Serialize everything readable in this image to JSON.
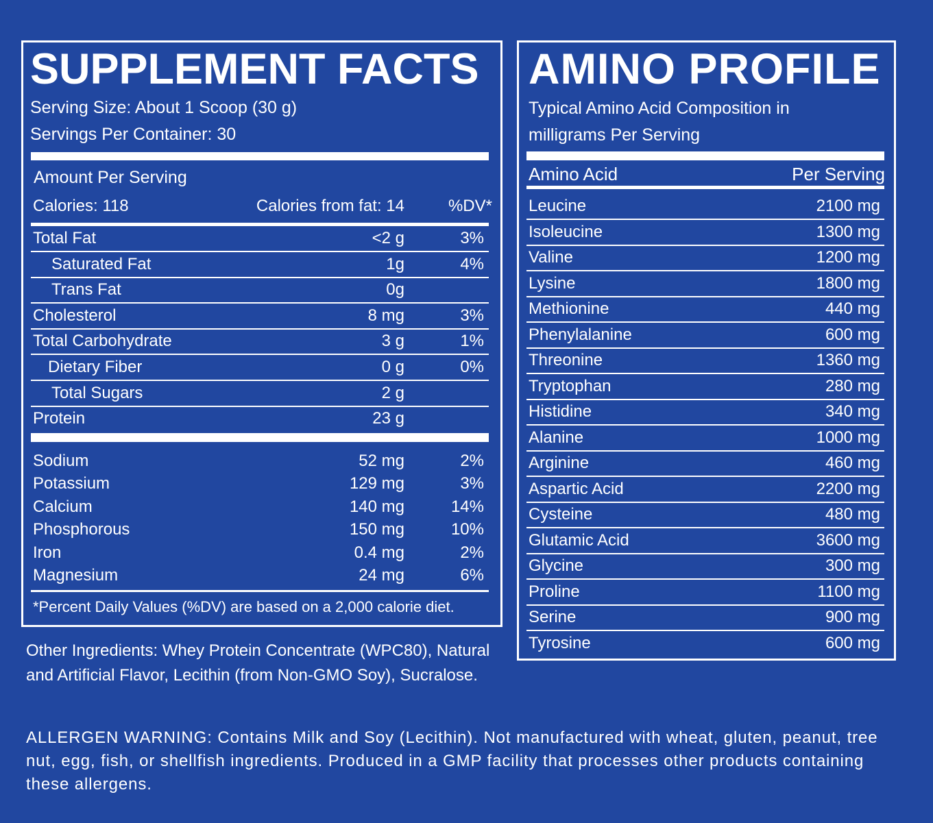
{
  "supplement_facts": {
    "title": "SUPPLEMENT FACTS",
    "serving_size": "Serving Size: About 1 Scoop (30 g)",
    "servings_per_container": "Servings Per Container: 30",
    "amount_per_serving": "Amount Per Serving",
    "calories": "Calories: 118",
    "calories_from_fat": "Calories from fat: 14",
    "dv_header": "%DV*",
    "nutrients": [
      {
        "name": "Total Fat",
        "amount": "<2 g",
        "dv": "3%"
      },
      {
        "name": "Saturated Fat",
        "amount": "1g",
        "dv": "4%"
      },
      {
        "name": "Trans Fat",
        "amount": "0g"
      },
      {
        "name": "Cholesterol",
        "amount": "8 mg",
        "dv": "3%"
      },
      {
        "name": "Total Carbohydrate",
        "amount": "3 g",
        "dv": "1%"
      },
      {
        "name": "Dietary Fiber",
        "amount": "0 g",
        "dv": "0%"
      },
      {
        "name": "Total Sugars",
        "amount": "2 g"
      },
      {
        "name": "Protein",
        "amount": "23 g"
      }
    ],
    "minerals": [
      {
        "name": "Sodium",
        "amount": "52 mg",
        "dv": "2%"
      },
      {
        "name": "Potassium",
        "amount": "129 mg",
        "dv": "3%"
      },
      {
        "name": "Calcium",
        "amount": "140 mg",
        "dv": "14%"
      },
      {
        "name": "Phosphorous",
        "amount": "150 mg",
        "dv": "10%"
      },
      {
        "name": "Iron",
        "amount": "0.4 mg",
        "dv": "2%"
      },
      {
        "name": "Magnesium",
        "amount": "24 mg",
        "dv": "6%"
      }
    ],
    "footnote": "*Percent Daily Values (%DV) are based on a 2,000 calorie diet."
  },
  "other_ingredients": "Other Ingredients: Whey Protein Concentrate (WPC80), Natural and Artificial Flavor, Lecithin (from Non-GMO Soy), Sucralose.",
  "allergen_warning": "ALLERGEN WARNING: Contains Milk and Soy (Lecithin). Not manufactured with wheat, gluten, peanut, tree nut, egg, fish, or shellfish ingredients. Produced in a GMP facility that processes other products containing these allergens.",
  "amino_profile": {
    "title": "AMINO PROFILE",
    "subtitle": "Typical Amino Acid Composition in milligrams Per Serving",
    "header": {
      "name": "Amino Acid",
      "amount": "Per Serving"
    },
    "rows": [
      {
        "name": "Leucine",
        "amount": "2100 mg"
      },
      {
        "name": "Isoleucine",
        "amount": "1300 mg"
      },
      {
        "name": "Valine",
        "amount": "1200 mg"
      },
      {
        "name": "Lysine",
        "amount": "1800 mg"
      },
      {
        "name": "Methionine",
        "amount": "440 mg"
      },
      {
        "name": "Phenylalanine",
        "amount": "600 mg"
      },
      {
        "name": "Threonine",
        "amount": "1360 mg"
      },
      {
        "name": "Tryptophan",
        "amount": "280 mg"
      },
      {
        "name": "Histidine",
        "amount": "340 mg"
      },
      {
        "name": "Alanine",
        "amount": "1000 mg"
      },
      {
        "name": "Arginine",
        "amount": "460 mg"
      },
      {
        "name": "Aspartic Acid",
        "amount": "2200 mg"
      },
      {
        "name": "Cysteine",
        "amount": "480 mg"
      },
      {
        "name": "Glutamic Acid",
        "amount": "3600 mg"
      },
      {
        "name": "Glycine",
        "amount": "300 mg"
      },
      {
        "name": "Proline",
        "amount": "1100 mg"
      },
      {
        "name": "Serine",
        "amount": "900 mg"
      },
      {
        "name": "Tyrosine",
        "amount": "600 mg"
      }
    ]
  }
}
